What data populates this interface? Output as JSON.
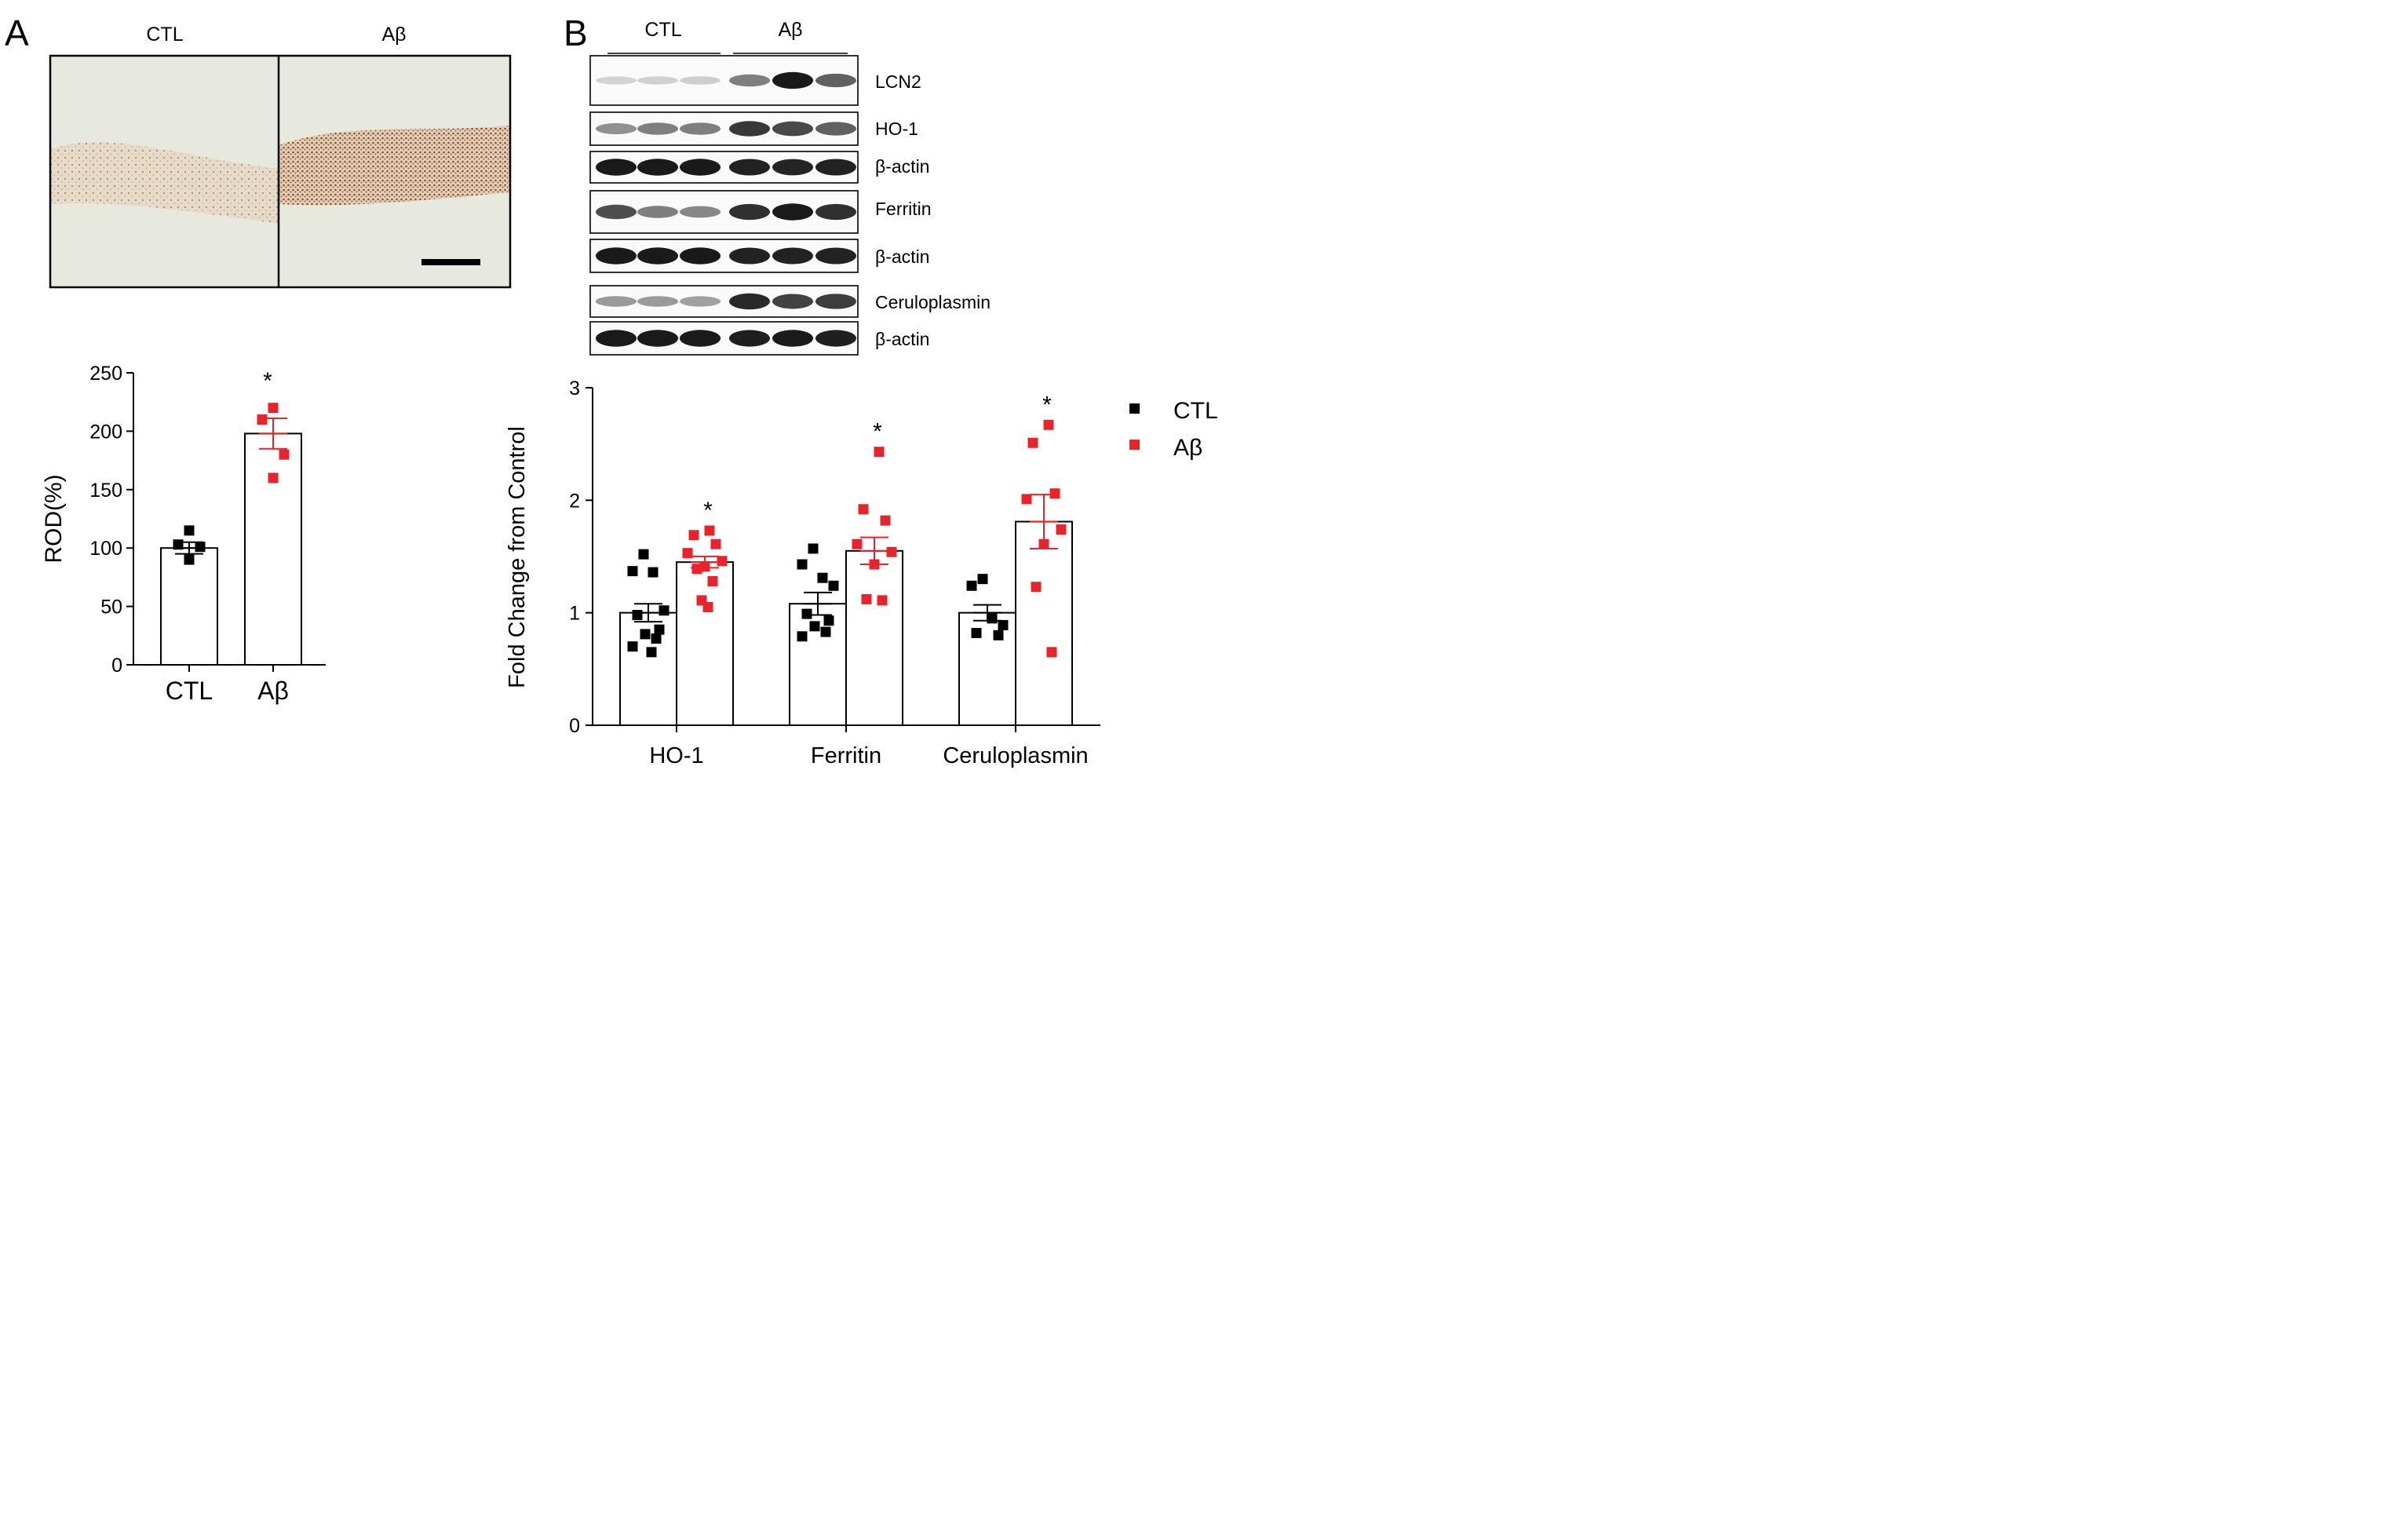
{
  "panel_a": {
    "letter": "A",
    "image_labels": [
      "CTL",
      "Aβ"
    ]
  },
  "panel_b": {
    "letter": "B",
    "lane_groups": [
      "CTL",
      "Aβ"
    ],
    "blot_labels": [
      "LCN2",
      "HO-1",
      "β-actin",
      "Ferritin",
      "β-actin",
      "Ceruloplasmin",
      "β-actin"
    ],
    "blot_bands": [
      [
        0.02,
        0.03,
        0.05,
        0.45,
        0.95,
        0.6
      ],
      [
        0.35,
        0.45,
        0.45,
        0.8,
        0.72,
        0.6
      ],
      [
        0.95,
        0.95,
        0.95,
        0.92,
        0.9,
        0.92
      ],
      [
        0.7,
        0.45,
        0.4,
        0.85,
        0.95,
        0.85
      ],
      [
        0.95,
        0.95,
        0.95,
        0.92,
        0.92,
        0.92
      ],
      [
        0.3,
        0.3,
        0.28,
        0.88,
        0.75,
        0.78
      ],
      [
        0.95,
        0.95,
        0.95,
        0.93,
        0.95,
        0.93
      ]
    ]
  },
  "chart_data": [
    {
      "type": "bar",
      "ylabel": "ROD(%)",
      "ylim": [
        0,
        250
      ],
      "yticks": [
        0,
        50,
        100,
        150,
        200,
        250
      ],
      "categories": [
        "CTL",
        "Aβ"
      ],
      "means": [
        100,
        198
      ],
      "sem": [
        5,
        13
      ],
      "points": [
        [
          115,
          103,
          101,
          90
        ],
        [
          220,
          210,
          180,
          160
        ]
      ],
      "colors": [
        "#000000",
        "#e8232a"
      ],
      "significance": [
        "",
        "*"
      ]
    },
    {
      "type": "bar",
      "ylabel": "Fold Change from Control",
      "ylim": [
        0,
        3
      ],
      "yticks": [
        0,
        1,
        2,
        3
      ],
      "categories": [
        "HO-1",
        "Ferritin",
        "Ceruloplasmin"
      ],
      "legend": [
        "CTL",
        "Aβ"
      ],
      "series": [
        {
          "name": "CTL",
          "color": "#000000",
          "means": [
            1.0,
            1.08,
            1.0
          ],
          "sem": [
            0.08,
            0.1,
            0.07
          ],
          "points": [
            [
              1.52,
              1.37,
              1.36,
              1.02,
              0.98,
              0.85,
              0.81,
              0.77,
              0.7,
              0.65
            ],
            [
              1.57,
              1.43,
              1.31,
              1.24,
              0.99,
              0.93,
              0.88,
              0.83,
              0.79
            ],
            [
              1.3,
              1.24,
              0.95,
              0.89,
              0.82,
              0.8
            ]
          ]
        },
        {
          "name": "Aβ",
          "color": "#e8232a",
          "means": [
            1.45,
            1.55,
            1.81
          ],
          "sem": [
            0.05,
            0.12,
            0.24
          ],
          "points": [
            [
              1.73,
              1.69,
              1.61,
              1.53,
              1.46,
              1.41,
              1.39,
              1.28,
              1.11,
              1.05
            ],
            [
              2.43,
              1.92,
              1.82,
              1.61,
              1.54,
              1.43,
              1.12,
              1.11
            ],
            [
              2.67,
              2.51,
              2.06,
              2.01,
              1.74,
              1.61,
              1.23,
              0.65
            ]
          ]
        }
      ],
      "significance": [
        "*",
        "*",
        "*"
      ]
    }
  ]
}
